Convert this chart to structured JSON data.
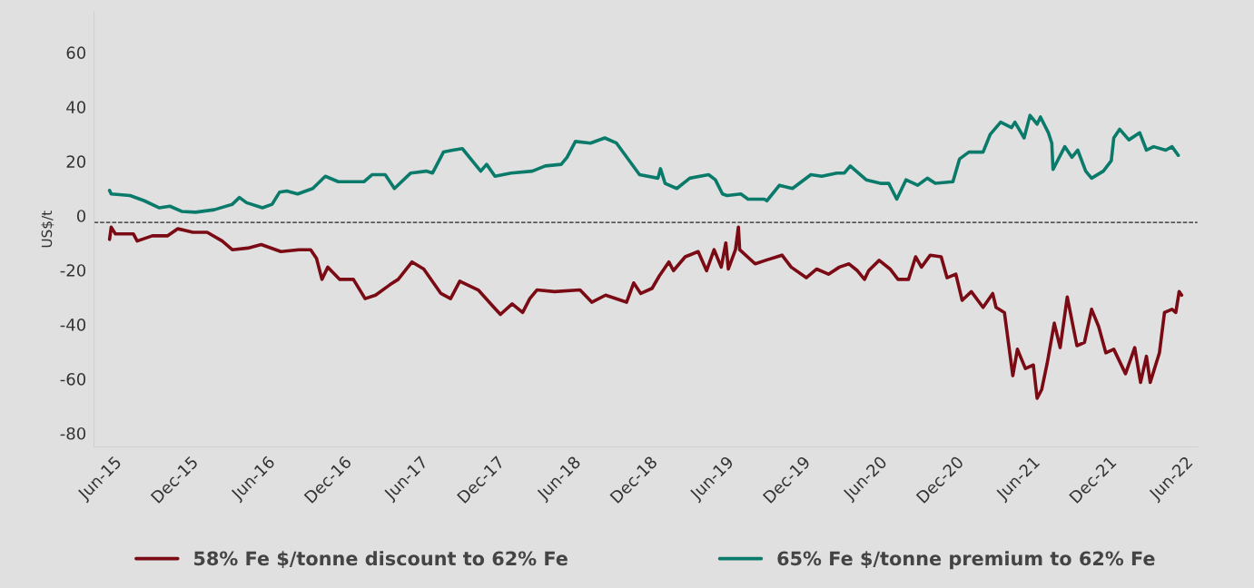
{
  "chart_data": {
    "type": "line",
    "ylabel": "US$/t",
    "ylim": [
      -85,
      75
    ],
    "yticks": [
      -80,
      -60,
      -40,
      -20,
      0,
      20,
      40,
      60
    ],
    "xlim": [
      "2015-04-15",
      "2022-07-01"
    ],
    "xticks": [
      {
        "value": "2015-06-01",
        "label": "Jun-15"
      },
      {
        "value": "2015-12-01",
        "label": "Dec-15"
      },
      {
        "value": "2016-06-01",
        "label": "Jun-16"
      },
      {
        "value": "2016-12-01",
        "label": "Dec-16"
      },
      {
        "value": "2017-06-01",
        "label": "Jun-17"
      },
      {
        "value": "2017-12-01",
        "label": "Dec-17"
      },
      {
        "value": "2018-06-01",
        "label": "Jun-18"
      },
      {
        "value": "2018-12-01",
        "label": "Dec-18"
      },
      {
        "value": "2019-06-01",
        "label": "Jun-19"
      },
      {
        "value": "2019-12-01",
        "label": "Dec-19"
      },
      {
        "value": "2020-06-01",
        "label": "Jun-20"
      },
      {
        "value": "2020-12-01",
        "label": "Dec-20"
      },
      {
        "value": "2021-06-01",
        "label": "Jun-21"
      },
      {
        "value": "2021-12-01",
        "label": "Dec-21"
      },
      {
        "value": "2022-06-01",
        "label": "Jun-22"
      }
    ],
    "grid": false,
    "legend": "bottom",
    "marker": "none",
    "line_style": "solid",
    "ref_lines": [
      {
        "axis": "y",
        "value": -2.5,
        "color": "#222222",
        "line_style": "dashed"
      }
    ],
    "series": [
      {
        "name": "58% Fe $/tonne discount to 62% Fe",
        "color": "#7a0a14",
        "x": [
          "2015-05-22",
          "2015-05-26",
          "2015-06-05",
          "2015-07-18",
          "2015-07-27",
          "2015-09-01",
          "2015-10-07",
          "2015-11-01",
          "2015-12-07",
          "2016-01-10",
          "2016-02-15",
          "2016-03-10",
          "2016-04-16",
          "2016-05-18",
          "2016-07-04",
          "2016-08-16",
          "2016-09-13",
          "2016-09-27",
          "2016-10-10",
          "2016-10-24",
          "2016-11-21",
          "2016-12-24",
          "2017-01-21",
          "2017-02-15",
          "2017-03-21",
          "2017-04-10",
          "2017-05-13",
          "2017-06-10",
          "2017-07-21",
          "2017-08-13",
          "2017-09-04",
          "2017-10-18",
          "2017-11-21",
          "2017-12-10",
          "2018-01-07",
          "2018-02-01",
          "2018-02-18",
          "2018-03-07",
          "2018-04-18",
          "2018-06-18",
          "2018-07-16",
          "2018-08-18",
          "2018-09-24",
          "2018-10-07",
          "2018-10-24",
          "2018-11-10",
          "2018-12-07",
          "2018-12-24",
          "2019-01-16",
          "2019-01-27",
          "2019-02-24",
          "2019-03-27",
          "2019-04-16",
          "2019-05-04",
          "2019-05-21",
          "2019-06-01",
          "2019-06-07",
          "2019-06-24",
          "2019-07-01",
          "2019-07-04",
          "2019-08-10",
          "2019-09-04",
          "2019-10-01",
          "2019-10-13",
          "2019-11-04",
          "2019-12-10",
          "2020-01-04",
          "2020-02-01",
          "2020-02-27",
          "2020-03-21",
          "2020-04-10",
          "2020-04-27",
          "2020-05-07",
          "2020-06-01",
          "2020-06-27",
          "2020-07-16",
          "2020-08-10",
          "2020-08-27",
          "2020-09-10",
          "2020-10-01",
          "2020-10-27",
          "2020-11-10",
          "2020-12-01",
          "2020-12-16",
          "2021-01-07",
          "2021-02-04",
          "2021-02-27",
          "2021-03-07",
          "2021-03-27",
          "2021-04-16",
          "2021-04-27",
          "2021-05-16",
          "2021-06-04",
          "2021-06-13",
          "2021-06-24",
          "2021-07-07",
          "2021-07-24",
          "2021-08-07",
          "2021-08-24",
          "2021-09-16",
          "2021-10-04",
          "2021-10-21",
          "2021-11-07",
          "2021-11-24",
          "2021-12-13",
          "2022-01-10",
          "2022-02-01",
          "2022-02-15",
          "2022-03-01",
          "2022-03-10",
          "2022-04-01",
          "2022-04-13",
          "2022-05-01",
          "2022-05-10",
          "2022-05-18",
          "2022-05-24"
        ],
        "values": [
          -8.7,
          -4.2,
          -6.7,
          -6.7,
          -9.3,
          -7.4,
          -7.4,
          -4.8,
          -6.1,
          -6.1,
          -9.3,
          -12.5,
          -11.9,
          -10.6,
          -13.2,
          -12.5,
          -12.5,
          -15.7,
          -23.4,
          -18.9,
          -23.4,
          -23.4,
          -30.5,
          -29.2,
          -25.4,
          -23.4,
          -17.0,
          -19.6,
          -28.6,
          -30.5,
          -24.1,
          -27.3,
          -33.1,
          -36.3,
          -32.4,
          -35.6,
          -30.5,
          -27.3,
          -27.9,
          -27.3,
          -31.8,
          -29.2,
          -31.1,
          -31.8,
          -24.7,
          -28.6,
          -26.7,
          -22.2,
          -17.0,
          -20.2,
          -15.1,
          -13.2,
          -20.2,
          -12.5,
          -18.9,
          -10.0,
          -19.6,
          -12.5,
          -4.2,
          -12.5,
          -17.7,
          -16.4,
          -15.1,
          -14.5,
          -18.9,
          -22.8,
          -19.6,
          -21.5,
          -18.9,
          -17.7,
          -20.2,
          -23.4,
          -20.2,
          -16.4,
          -19.6,
          -23.4,
          -23.4,
          -15.1,
          -18.9,
          -14.5,
          -15.1,
          -22.8,
          -21.5,
          -31.1,
          -27.9,
          -33.7,
          -28.6,
          -33.7,
          -35.6,
          -58.8,
          -49.1,
          -56.2,
          -54.9,
          -67.1,
          -63.9,
          -54.3,
          -39.5,
          -48.5,
          -29.9,
          -47.8,
          -46.6,
          -34.4,
          -40.8,
          -50.4,
          -49.1,
          -58.1,
          -48.5,
          -61.3,
          -51.7,
          -61.3,
          -50.4,
          -35.6,
          -34.4,
          -35.6,
          -27.9,
          -29.2
        ]
      },
      {
        "name": "65% Fe $/tonne premium to 62% Fe",
        "color": "#0a7a6a",
        "x": [
          "2015-05-22",
          "2015-05-26",
          "2015-07-10",
          "2015-08-13",
          "2015-09-18",
          "2015-10-13",
          "2015-11-10",
          "2015-12-13",
          "2016-01-27",
          "2016-03-10",
          "2016-03-27",
          "2016-04-13",
          "2016-05-21",
          "2016-06-13",
          "2016-07-01",
          "2016-07-18",
          "2016-08-13",
          "2016-09-18",
          "2016-10-18",
          "2016-11-18",
          "2017-01-18",
          "2017-02-07",
          "2017-03-10",
          "2017-04-01",
          "2017-05-10",
          "2017-06-16",
          "2017-07-01",
          "2017-07-27",
          "2017-08-18",
          "2017-09-10",
          "2017-10-24",
          "2017-11-07",
          "2017-11-27",
          "2018-01-04",
          "2018-02-24",
          "2018-03-27",
          "2018-05-04",
          "2018-05-18",
          "2018-06-07",
          "2018-07-13",
          "2018-08-16",
          "2018-09-13",
          "2018-11-07",
          "2018-12-21",
          "2018-12-27",
          "2019-01-07",
          "2019-02-04",
          "2019-03-07",
          "2019-04-21",
          "2019-05-07",
          "2019-05-24",
          "2019-06-04",
          "2019-07-07",
          "2019-07-24",
          "2019-09-01",
          "2019-09-07",
          "2019-10-07",
          "2019-11-07",
          "2019-12-21",
          "2020-01-16",
          "2020-02-21",
          "2020-03-10",
          "2020-03-24",
          "2020-05-01",
          "2020-06-04",
          "2020-06-24",
          "2020-07-13",
          "2020-08-04",
          "2020-09-01",
          "2020-09-24",
          "2020-10-13",
          "2020-11-24",
          "2020-12-10",
          "2021-01-01",
          "2021-02-04",
          "2021-02-21",
          "2021-03-18",
          "2021-04-13",
          "2021-04-21",
          "2021-05-13",
          "2021-05-27",
          "2021-06-13",
          "2021-06-21",
          "2021-07-10",
          "2021-07-18",
          "2021-07-21",
          "2021-08-18",
          "2021-09-04",
          "2021-09-18",
          "2021-10-07",
          "2021-10-21",
          "2021-11-18",
          "2021-12-07",
          "2021-12-13",
          "2021-12-27",
          "2022-01-18",
          "2022-02-13",
          "2022-03-01",
          "2022-03-18",
          "2022-04-16",
          "2022-05-01",
          "2022-05-16"
        ],
        "values": [
          9.3,
          8.0,
          7.4,
          5.5,
          2.9,
          3.5,
          1.6,
          1.3,
          2.2,
          4.2,
          6.7,
          4.8,
          2.9,
          4.2,
          8.7,
          9.1,
          8.0,
          10.0,
          14.5,
          12.5,
          12.5,
          15.1,
          15.1,
          10.0,
          15.7,
          16.4,
          15.7,
          23.4,
          24.1,
          24.7,
          16.4,
          18.9,
          14.5,
          15.7,
          16.4,
          18.3,
          18.9,
          21.5,
          27.3,
          26.7,
          28.6,
          26.7,
          15.1,
          13.8,
          17.3,
          11.9,
          10.0,
          13.8,
          15.1,
          13.2,
          8.0,
          7.4,
          8.0,
          6.1,
          6.1,
          5.5,
          11.2,
          10.0,
          15.1,
          14.5,
          15.7,
          15.7,
          18.3,
          13.2,
          11.9,
          11.9,
          6.1,
          13.2,
          11.2,
          13.8,
          11.9,
          12.5,
          20.9,
          23.4,
          23.4,
          29.9,
          34.4,
          32.4,
          34.4,
          28.6,
          36.9,
          33.7,
          36.3,
          30.5,
          26.7,
          17.0,
          25.4,
          21.5,
          24.1,
          16.4,
          13.8,
          16.4,
          20.2,
          28.6,
          31.8,
          27.9,
          30.5,
          24.1,
          25.4,
          24.1,
          25.4,
          22.2
        ]
      }
    ]
  }
}
